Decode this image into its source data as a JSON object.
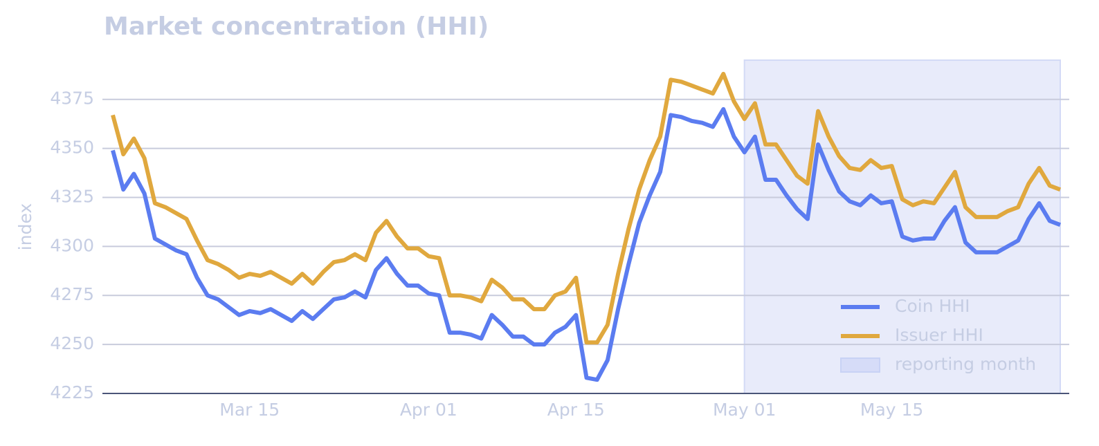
{
  "chart_data": {
    "type": "line",
    "title": "Market concentration (HHI)",
    "y_label": "index",
    "x": [
      "Mar 02",
      "Mar 03",
      "Mar 04",
      "Mar 05",
      "Mar 06",
      "Mar 07",
      "Mar 08",
      "Mar 09",
      "Mar 10",
      "Mar 11",
      "Mar 12",
      "Mar 13",
      "Mar 14",
      "Mar 15",
      "Mar 16",
      "Mar 17",
      "Mar 18",
      "Mar 19",
      "Mar 20",
      "Mar 21",
      "Mar 22",
      "Mar 23",
      "Mar 24",
      "Mar 25",
      "Mar 26",
      "Mar 27",
      "Mar 28",
      "Mar 29",
      "Mar 30",
      "Mar 31",
      "Apr 01",
      "Apr 02",
      "Apr 03",
      "Apr 04",
      "Apr 05",
      "Apr 06",
      "Apr 07",
      "Apr 08",
      "Apr 09",
      "Apr 10",
      "Apr 11",
      "Apr 12",
      "Apr 13",
      "Apr 14",
      "Apr 15",
      "Apr 16",
      "Apr 17",
      "Apr 18",
      "Apr 19",
      "Apr 20",
      "Apr 21",
      "Apr 22",
      "Apr 23",
      "Apr 24",
      "Apr 25",
      "Apr 26",
      "Apr 27",
      "Apr 28",
      "Apr 29",
      "Apr 30",
      "May 01",
      "May 02",
      "May 03",
      "May 04",
      "May 05",
      "May 06",
      "May 07",
      "May 08",
      "May 09",
      "May 10",
      "May 11",
      "May 12",
      "May 13",
      "May 14",
      "May 15",
      "May 16",
      "May 17",
      "May 18",
      "May 19",
      "May 20",
      "May 21",
      "May 22",
      "May 23",
      "May 24",
      "May 25",
      "May 26",
      "May 27",
      "May 28",
      "May 29",
      "May 30",
      "May 31"
    ],
    "xticks": [
      "Mar 15",
      "Apr 01",
      "Apr 15",
      "May 01",
      "May 15"
    ],
    "series": [
      {
        "name": "Coin HHI",
        "color": "#5b7cf0",
        "values": [
          4349,
          4329,
          4337,
          4327,
          4304,
          4301,
          4298,
          4296,
          4284,
          4275,
          4273,
          4269,
          4265,
          4267,
          4266,
          4268,
          4265,
          4262,
          4267,
          4263,
          4268,
          4273,
          4274,
          4277,
          4274,
          4288,
          4294,
          4286,
          4280,
          4280,
          4276,
          4275,
          4256,
          4256,
          4255,
          4253,
          4265,
          4260,
          4254,
          4254,
          4250,
          4250,
          4256,
          4259,
          4265,
          4233,
          4232,
          4242,
          4268,
          4291,
          4312,
          4326,
          4338,
          4367,
          4366,
          4364,
          4363,
          4361,
          4370,
          4356,
          4348,
          4356,
          4334,
          4334,
          4326,
          4319,
          4314,
          4352,
          4339,
          4328,
          4323,
          4321,
          4326,
          4322,
          4323,
          4305,
          4303,
          4304,
          4304,
          4313,
          4320,
          4302,
          4297,
          4297,
          4297,
          4300,
          4303,
          4314,
          4322,
          4313,
          4311
        ]
      },
      {
        "name": "Issuer HHI",
        "color": "#e0a83e",
        "values": [
          4367,
          4347,
          4355,
          4345,
          4322,
          4320,
          4317,
          4314,
          4303,
          4293,
          4291,
          4288,
          4284,
          4286,
          4285,
          4287,
          4284,
          4281,
          4286,
          4281,
          4287,
          4292,
          4293,
          4296,
          4293,
          4307,
          4313,
          4305,
          4299,
          4299,
          4295,
          4294,
          4275,
          4275,
          4274,
          4272,
          4283,
          4279,
          4273,
          4273,
          4268,
          4268,
          4275,
          4277,
          4284,
          4251,
          4251,
          4260,
          4286,
          4309,
          4329,
          4344,
          4356,
          4385,
          4384,
          4382,
          4380,
          4378,
          4388,
          4374,
          4365,
          4373,
          4352,
          4352,
          4344,
          4336,
          4332,
          4369,
          4356,
          4346,
          4340,
          4339,
          4344,
          4340,
          4341,
          4324,
          4321,
          4323,
          4322,
          4330,
          4338,
          4320,
          4315,
          4315,
          4315,
          4318,
          4320,
          4332,
          4340,
          4331,
          4329
        ]
      }
    ],
    "highlight": {
      "label": "reporting month",
      "from": "May 01",
      "to": "May 31",
      "color": "#e8ebfa"
    },
    "ylim": [
      4225,
      4395
    ],
    "yticks": [
      4225,
      4250,
      4275,
      4300,
      4325,
      4350,
      4375
    ],
    "grid": true,
    "legend": "lower right"
  }
}
